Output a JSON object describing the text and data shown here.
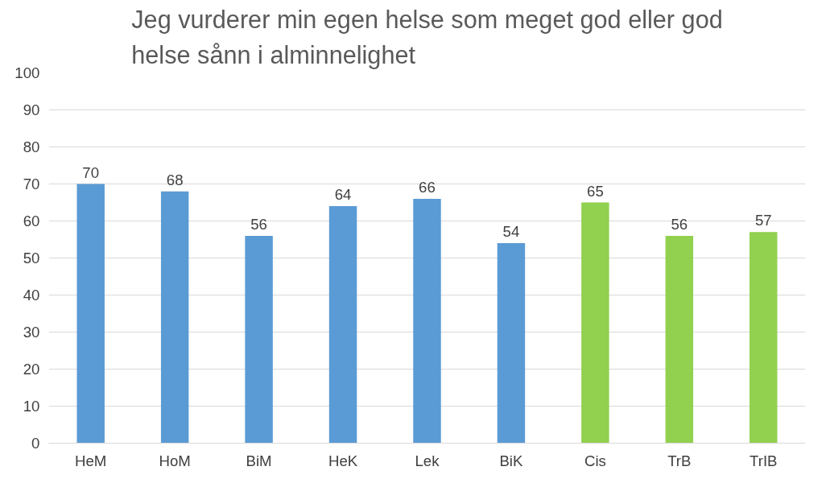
{
  "chart_data": {
    "type": "bar",
    "title": "Jeg vurderer min egen helse som meget god eller god\nhelse sånn i alminnelighet",
    "categories": [
      "HeM",
      "HoM",
      "BiM",
      "HeK",
      "Lek",
      "BiK",
      "Cis",
      "TrB",
      "TrIB"
    ],
    "values": [
      70,
      68,
      56,
      64,
      66,
      54,
      65,
      56,
      57
    ],
    "colors": [
      "#5b9bd5",
      "#5b9bd5",
      "#5b9bd5",
      "#5b9bd5",
      "#5b9bd5",
      "#5b9bd5",
      "#92d050",
      "#92d050",
      "#92d050"
    ],
    "ylim": [
      0,
      100
    ],
    "yticks": [
      0,
      10,
      20,
      30,
      40,
      50,
      60,
      70,
      80,
      90,
      100
    ],
    "grid": "y",
    "data_labels": true
  }
}
